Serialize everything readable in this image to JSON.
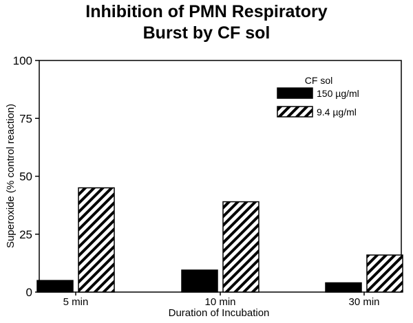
{
  "chart_data": {
    "type": "bar",
    "title_lines": [
      "Inhibition of PMN Respiratory",
      "Burst by CF sol"
    ],
    "xlabel": "Duration of Incubation",
    "ylabel": "Superoxide (% control reaction)",
    "categories": [
      "5 min",
      "10 min",
      "30 min"
    ],
    "ylim": [
      0,
      100
    ],
    "yticks": [
      "0",
      "25",
      "50",
      "75",
      "100"
    ],
    "legend_title": "CF sol",
    "legend_position": "top-right",
    "grid": false,
    "series": [
      {
        "name": "150 µg/ml",
        "values": [
          5,
          9.5,
          4
        ],
        "fill": "solid",
        "color": "#000000"
      },
      {
        "name": "9.4 µg/ml",
        "values": [
          45,
          39,
          16
        ],
        "fill": "diagonal-hatch",
        "color": "#000000"
      }
    ]
  }
}
